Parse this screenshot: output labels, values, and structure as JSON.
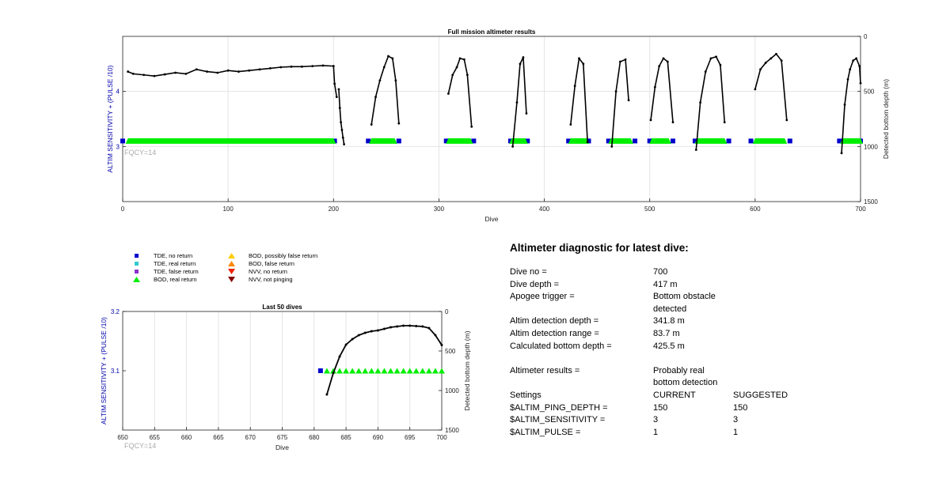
{
  "colors": {
    "altim_trace": "#000000",
    "tde_no_return": "#0000cc",
    "tde_real_return": "#33cccc",
    "tde_false_return": "#8833cc",
    "bod_real_return": "#00ee00",
    "bod_possibly_false": "#ffcc00",
    "bod_false": "#ff8800",
    "nvv_no_return": "#ee2200",
    "nvv_not_pinging": "#880000",
    "left_axis": "#0000aa",
    "fqcy_text": "#aaaaaa",
    "grid": "#e4e4e4"
  },
  "legend": [
    {
      "label": "TDE, no return",
      "marker": "square",
      "color_key": "tde_no_return"
    },
    {
      "label": "TDE, real return",
      "marker": "square",
      "color_key": "tde_real_return"
    },
    {
      "label": "TDE, false return",
      "marker": "square",
      "color_key": "tde_false_return"
    },
    {
      "label": "BOD, real return",
      "marker": "triangle-up",
      "color_key": "bod_real_return"
    },
    {
      "label": "BOD, possibly false return",
      "marker": "triangle-up",
      "color_key": "bod_possibly_false"
    },
    {
      "label": "BOD, false return",
      "marker": "triangle-up",
      "color_key": "bod_false"
    },
    {
      "label": "NVV, no return",
      "marker": "triangle-down",
      "color_key": "nvv_no_return"
    },
    {
      "label": "NVV, not pinging",
      "marker": "triangle-down",
      "color_key": "nvv_not_pinging"
    }
  ],
  "diagnostic": {
    "title": "Altimeter diagnostic for latest dive:",
    "rows": [
      {
        "k": "Dive no =",
        "v": "700",
        "v2": ""
      },
      {
        "k": "Dive depth =",
        "v": "417 m",
        "v2": ""
      },
      {
        "k": "Apogee trigger =",
        "v": "Bottom obstacle detected",
        "v2": ""
      },
      {
        "k": "",
        "v": "",
        "v2": ""
      },
      {
        "k": "Altim detection depth =",
        "v": "341.8 m",
        "v2": ""
      },
      {
        "k": "Altim detection range =",
        "v": "83.7 m",
        "v2": ""
      },
      {
        "k": "Calculated bottom depth =",
        "v": "425.5 m",
        "v2": ""
      },
      {
        "k": "",
        "v": "",
        "v2": ""
      },
      {
        "k": "Altimeter results =",
        "v": "Probably real bottom detection",
        "v2": ""
      },
      {
        "k": "",
        "v": "",
        "v2": ""
      },
      {
        "k": "Settings",
        "v": "CURRENT",
        "v2": "SUGGESTED"
      },
      {
        "k": "$ALTIM_PING_DEPTH =",
        "v": "150",
        "v2": "150"
      },
      {
        "k": "$ALTIM_SENSITIVITY =",
        "v": "3",
        "v2": "3"
      },
      {
        "k": "$ALTIM_PULSE =",
        "v": "1",
        "v2": "1"
      }
    ]
  },
  "chart_data": [
    {
      "type": "line",
      "title": "Full mission altimeter results",
      "xlabel": "Dive",
      "ylabel": "ALTIM SENSITIVITY + (PULSE /10)",
      "y2label": "Detected bottom depth (m)",
      "xlim": [
        0,
        700
      ],
      "ylim": [
        2,
        5
      ],
      "y2lim": [
        1500,
        0
      ],
      "xticks": [
        0,
        100,
        200,
        300,
        400,
        500,
        600,
        700
      ],
      "yticks": [
        3,
        4
      ],
      "y2ticks": [
        0,
        500,
        1000,
        1500
      ],
      "grid": true,
      "annotation": "FQCY=14",
      "setting_markers": [
        {
          "series": "TDE, no return",
          "x": [
            0,
            201,
            233,
            262,
            307,
            333,
            368,
            384,
            423,
            442,
            461,
            486,
            500,
            522,
            543,
            575,
            596,
            633,
            680,
            700
          ],
          "y": 3.1
        },
        {
          "series": "BOD, real return",
          "x_ranges": [
            [
              5,
              200
            ],
            [
              236,
              258
            ],
            [
              309,
              330
            ],
            [
              369,
              382
            ],
            [
              425,
              440
            ],
            [
              463,
              482
            ],
            [
              502,
              518
            ],
            [
              545,
              571
            ],
            [
              600,
              628
            ],
            [
              683,
              700
            ]
          ],
          "y": 3.1
        }
      ],
      "bottom_depth_segments": [
        {
          "x": [
            5,
            10,
            20,
            30,
            40,
            50,
            60,
            70,
            80,
            90,
            100,
            110,
            120,
            130,
            140,
            150,
            160,
            170,
            180,
            190,
            200
          ],
          "y": [
            320,
            340,
            350,
            360,
            345,
            330,
            340,
            300,
            320,
            330,
            310,
            320,
            310,
            300,
            290,
            280,
            275,
            275,
            270,
            265,
            270
          ]
        },
        {
          "x": [
            200,
            201,
            203
          ],
          "y": [
            270,
            430,
            550
          ]
        },
        {
          "x": [
            205,
            206,
            207,
            208,
            209,
            210
          ],
          "y": [
            480,
            650,
            780,
            850,
            920,
            980
          ]
        },
        {
          "x": [
            236,
            240,
            244,
            248,
            252,
            256,
            259,
            262
          ],
          "y": [
            800,
            550,
            400,
            280,
            180,
            200,
            400,
            790
          ]
        },
        {
          "x": [
            309,
            313,
            317,
            320,
            324,
            327,
            331
          ],
          "y": [
            520,
            350,
            280,
            200,
            210,
            350,
            820
          ]
        },
        {
          "x": [
            370,
            374,
            377,
            380,
            383
          ],
          "y": [
            1000,
            600,
            250,
            190,
            700
          ]
        },
        {
          "x": [
            425,
            429,
            433,
            437,
            441
          ],
          "y": [
            800,
            450,
            200,
            250,
            960
          ]
        },
        {
          "x": [
            464,
            468,
            472,
            477,
            480
          ],
          "y": [
            1000,
            500,
            230,
            210,
            580
          ]
        },
        {
          "x": [
            501,
            505,
            509,
            513,
            517,
            522
          ],
          "y": [
            760,
            460,
            270,
            200,
            230,
            780
          ]
        },
        {
          "x": [
            544,
            548,
            553,
            558,
            563,
            567,
            571
          ],
          "y": [
            1030,
            600,
            320,
            200,
            185,
            260,
            780
          ]
        },
        {
          "x": [
            600,
            605,
            610,
            615,
            620,
            625,
            630
          ],
          "y": [
            480,
            300,
            240,
            200,
            160,
            220,
            760
          ]
        },
        {
          "x": [
            682,
            685,
            688,
            690,
            693,
            696,
            699,
            700
          ],
          "y": [
            1060,
            620,
            390,
            300,
            220,
            200,
            270,
            425
          ]
        }
      ]
    },
    {
      "type": "line",
      "title": "Last 50 dives",
      "xlabel": "Dive",
      "ylabel": "ALTIM SENSITIVITY + (PULSE /10)",
      "y2label": "Detected bottom depth (m)",
      "xlim": [
        650,
        700
      ],
      "ylim": [
        3.0,
        3.2
      ],
      "y2lim": [
        1500,
        0
      ],
      "xticks": [
        650,
        655,
        660,
        665,
        670,
        675,
        680,
        685,
        690,
        695,
        700
      ],
      "yticks": [
        3.1,
        3.2
      ],
      "y2ticks": [
        0,
        500,
        1000,
        1500
      ],
      "grid": true,
      "annotation": "FQCY=14",
      "setting_markers": [
        {
          "series": "TDE, no return",
          "x": [
            681
          ],
          "y": 3.1
        },
        {
          "series": "BOD, real return",
          "x": [
            682,
            683,
            684,
            685,
            686,
            687,
            688,
            689,
            690,
            691,
            692,
            693,
            694,
            695,
            696,
            697,
            698,
            699,
            700
          ],
          "y": 3.1
        }
      ],
      "bottom_depth_segments": [
        {
          "x": [
            682,
            683,
            684,
            685,
            686,
            687,
            688,
            689,
            690,
            691,
            692,
            693,
            694,
            695,
            696,
            697,
            698,
            699,
            700
          ],
          "y": [
            1050,
            780,
            570,
            420,
            350,
            300,
            270,
            250,
            240,
            220,
            200,
            190,
            180,
            180,
            185,
            190,
            210,
            300,
            425
          ]
        }
      ]
    }
  ]
}
